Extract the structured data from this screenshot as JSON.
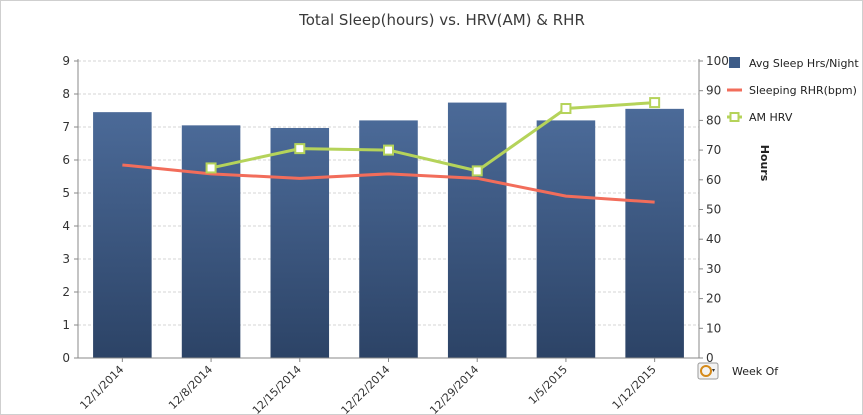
{
  "chart_data": {
    "type": "bar",
    "title": "Total Sleep(hours) vs. HRV(AM) & RHR",
    "categories": [
      "12/1/2014",
      "12/8/2014",
      "12/15/2014",
      "12/22/2014",
      "12/29/2014",
      "1/5/2015",
      "1/12/2015"
    ],
    "xlabel": "Week Of",
    "ylabel_right": "Hours",
    "ylim_left": [
      0,
      9
    ],
    "ylim_right": [
      0,
      100
    ],
    "yticks_left": [
      "0",
      "1",
      "2",
      "3",
      "4",
      "5",
      "6",
      "7",
      "8",
      "9"
    ],
    "yticks_right": [
      "0",
      "10",
      "20",
      "30",
      "40",
      "50",
      "60",
      "70",
      "80",
      "90",
      "100"
    ],
    "grid": true,
    "legend_position": "right",
    "series": [
      {
        "name": "Avg Sleep Hrs/Night",
        "kind": "bar",
        "axis": "left",
        "color": "#3d5c88",
        "values": [
          7.45,
          7.05,
          6.97,
          7.2,
          7.74,
          7.2,
          7.55
        ]
      },
      {
        "name": "Sleeping RHR(bpm)",
        "kind": "line",
        "axis": "right",
        "color": "#f26d5b",
        "values": [
          65,
          62,
          60.5,
          62,
          60.5,
          54.5,
          52.5
        ]
      },
      {
        "name": "AM HRV",
        "kind": "line",
        "axis": "right",
        "color": "#b5d35a",
        "values": [
          null,
          64,
          70.5,
          70,
          63,
          84,
          86
        ]
      }
    ]
  }
}
